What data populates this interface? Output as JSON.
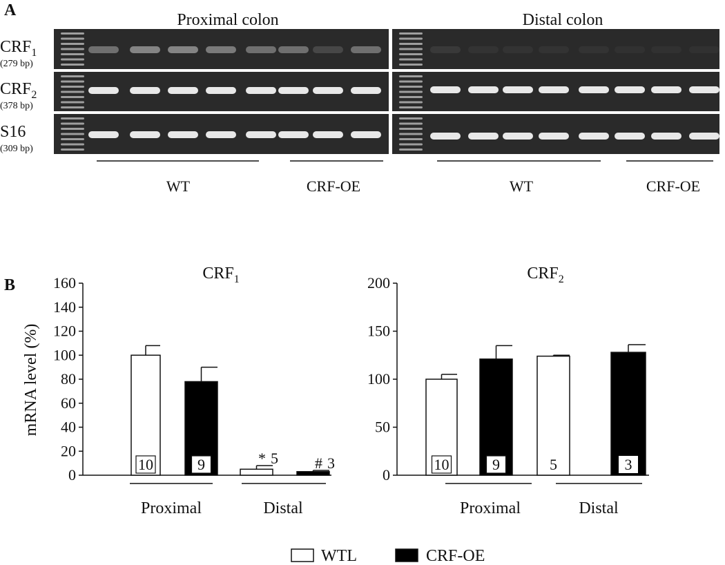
{
  "panel_a": {
    "label": "A",
    "regions": [
      "Proximal colon",
      "Distal colon"
    ],
    "genes": [
      {
        "name": "CRF",
        "subscript": "1",
        "size": "(279 bp)"
      },
      {
        "name": "CRF",
        "subscript": "2",
        "size": "(378 bp)"
      },
      {
        "name": "S16",
        "size": "(309 bp)"
      }
    ],
    "groups": [
      "WT",
      "CRF-OE"
    ]
  },
  "panel_b": {
    "label": "B"
  },
  "chart_data": [
    {
      "type": "bar",
      "title": "CRF",
      "title_subscript": "1",
      "ylabel": "mRNA level (%)",
      "categories": [
        "Proximal",
        "Distal"
      ],
      "ylim": [
        0,
        160
      ],
      "yticks": [
        0,
        20,
        40,
        60,
        80,
        100,
        120,
        140,
        160
      ],
      "series": [
        {
          "name": "WTL",
          "color": "#ffffff",
          "values": [
            100,
            5
          ],
          "errors": [
            8,
            3
          ],
          "n": [
            10,
            5
          ]
        },
        {
          "name": "CRF-OE",
          "color": "#000000",
          "values": [
            78,
            3
          ],
          "errors": [
            12,
            1
          ],
          "n": [
            9,
            3
          ]
        }
      ],
      "annotations": [
        {
          "text": "*",
          "series": 0,
          "category": 1
        },
        {
          "text": "#",
          "series": 1,
          "category": 1
        }
      ]
    },
    {
      "type": "bar",
      "title": "CRF",
      "title_subscript": "2",
      "categories": [
        "Proximal",
        "Distal"
      ],
      "ylim": [
        0,
        200
      ],
      "yticks": [
        0,
        50,
        100,
        150,
        200
      ],
      "series": [
        {
          "color": "#ffffff",
          "values": [
            100,
            124
          ],
          "errors": [
            5,
            1
          ],
          "n": [
            10,
            5
          ]
        },
        {
          "color": "#000000",
          "values": [
            121,
            128
          ],
          "errors": [
            14,
            8
          ],
          "n": [
            9,
            3
          ]
        }
      ]
    }
  ]
}
